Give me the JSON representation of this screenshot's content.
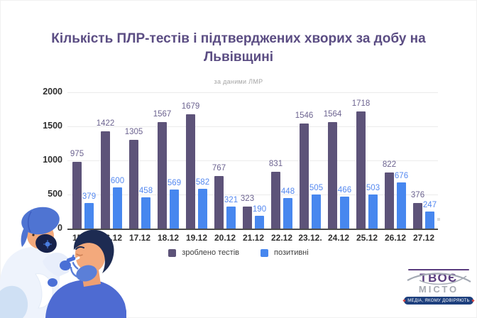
{
  "page": {
    "title": "Кількість ПЛР-тестів і підтверджених хворих за добу на Львівщині",
    "subtitle": "за даними ЛМР"
  },
  "chart_data": {
    "type": "bar",
    "categories": [
      "15.12",
      "16.12",
      "17.12",
      "18.12",
      "19.12",
      "20.12",
      "21.12",
      "22.12",
      "23.12.",
      "24.12",
      "25.12",
      "26.12",
      "27.12"
    ],
    "series": [
      {
        "name": "зроблено тестів",
        "color": "#5d5379",
        "label_color": "#6c6390",
        "values": [
          975,
          1422,
          1305,
          1567,
          1679,
          767,
          323,
          831,
          1546,
          1564,
          1718,
          822,
          376
        ]
      },
      {
        "name": "позитивні",
        "color": "#4787ef",
        "label_color": "#5589f0",
        "values": [
          379,
          600,
          458,
          569,
          582,
          321,
          190,
          448,
          505,
          466,
          503,
          676,
          247
        ]
      }
    ],
    "title": "Кількість ПЛР-тестів і підтверджених хворих за добу на Львівщині",
    "xlabel": "",
    "ylabel": "",
    "ylim": [
      0,
      2000
    ],
    "yticks": [
      0,
      500,
      1000,
      1500,
      2000
    ],
    "grid": true,
    "legend_position": "bottom"
  },
  "logo": {
    "word1": "ТВОЄ",
    "word2": "МІСТО",
    "slogan": "МЕДІА, ЯКОМУ ДОВІРЯЮТЬ"
  },
  "colors": {
    "title": "#5b4d83",
    "axis_text": "#2f2f2f",
    "grid": "#ebebeb",
    "axis_line": "#4b4b4b",
    "background": "#ffffff",
    "logo_purple": "#5b3d7f",
    "logo_gray": "#a7abb3",
    "banner_navy": "#1d3f7d"
  }
}
